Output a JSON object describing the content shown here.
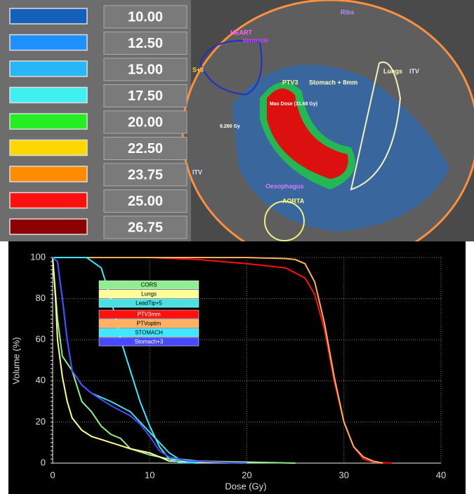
{
  "dose_legend": {
    "rows": [
      {
        "color": "#1560b8",
        "value": "10.00"
      },
      {
        "color": "#1e90ff",
        "value": "12.50"
      },
      {
        "color": "#29b6f6",
        "value": "15.00"
      },
      {
        "color": "#40f0f0",
        "value": "17.50"
      },
      {
        "color": "#22ee22",
        "value": "20.00"
      },
      {
        "color": "#ffd700",
        "value": "22.50"
      },
      {
        "color": "#ff8c00",
        "value": "23.75"
      },
      {
        "color": "#ff1010",
        "value": "25.00"
      },
      {
        "color": "#8b0000",
        "value": "26.75"
      }
    ]
  },
  "image": {
    "labels": [
      "Ribs",
      "HEART",
      "Ventricle",
      "S+3",
      "PTV3",
      "Stomach + 8mm",
      "Max Dose (31.68 Gy)",
      "9.260 Gy",
      "Lungs",
      "ITV",
      "ITV",
      "Oesophagus",
      "AORTA"
    ]
  },
  "chart_data": {
    "type": "line",
    "x_label": "Dose (Gy)",
    "y_label": "Volume (%)",
    "xlim": [
      0,
      40
    ],
    "xticks": [
      0,
      10,
      20,
      30,
      40
    ],
    "ylim": [
      0,
      100
    ],
    "yticks": [
      0,
      20,
      40,
      60,
      80,
      100
    ],
    "grid": true,
    "series": [
      {
        "name": "CORS",
        "color": "#90ee90",
        "x": [
          0,
          0.5,
          1,
          2,
          3,
          4,
          5,
          6,
          7,
          8,
          10,
          12,
          15,
          20,
          25
        ],
        "values": [
          100,
          70,
          52,
          45,
          30,
          25,
          18,
          14,
          12,
          7,
          4,
          2,
          1,
          0.5,
          0
        ]
      },
      {
        "name": "Lungs",
        "color": "#ffff99",
        "x": [
          0,
          0.3,
          0.5,
          1,
          1.5,
          2,
          3,
          4,
          6,
          8,
          10,
          11,
          12,
          15,
          20
        ],
        "values": [
          100,
          80,
          60,
          42,
          30,
          22,
          16,
          13,
          10,
          7,
          5,
          3,
          1,
          0.5,
          0
        ]
      },
      {
        "name": "LeadTip+5",
        "color": "#48e0e0",
        "x": [
          0,
          0.5,
          1,
          1.5,
          2,
          3,
          4,
          6,
          8,
          9,
          10,
          11,
          12,
          13,
          15,
          20
        ],
        "values": [
          100,
          98,
          80,
          60,
          45,
          38,
          34,
          30,
          25,
          20,
          15,
          10,
          5,
          2,
          1,
          0
        ]
      },
      {
        "name": "PTV3mm",
        "color": "#ff1010",
        "x": [
          0,
          10,
          15,
          20,
          24,
          26,
          27,
          28,
          29,
          30,
          31,
          32,
          33,
          35
        ],
        "values": [
          100,
          100,
          99,
          97,
          95,
          90,
          82,
          65,
          40,
          20,
          8,
          2,
          0.5,
          0
        ]
      },
      {
        "name": "PTVoptim",
        "color": "#ffb060",
        "x": [
          0,
          20,
          24,
          25,
          26,
          27,
          28,
          29,
          30,
          31,
          32,
          33,
          34
        ],
        "values": [
          100,
          100,
          99.5,
          99,
          97,
          88,
          68,
          42,
          20,
          8,
          3,
          1,
          0
        ]
      },
      {
        "name": "STOMACH",
        "color": "#40e8ff",
        "x": [
          0,
          3.5,
          5,
          6,
          7,
          8,
          9,
          10,
          11,
          12,
          13,
          15
        ],
        "values": [
          100,
          100,
          95,
          80,
          60,
          45,
          30,
          18,
          8,
          2,
          0.5,
          0
        ]
      },
      {
        "name": "Stomach+3",
        "color": "#4848ff",
        "x": [
          0,
          0.5,
          1,
          1.5,
          2,
          3,
          4,
          6,
          8,
          9,
          10,
          11,
          12,
          14,
          20
        ],
        "values": [
          100,
          98,
          80,
          60,
          45,
          38,
          34,
          28,
          23,
          19,
          13,
          6,
          3,
          1,
          0
        ]
      }
    ]
  }
}
